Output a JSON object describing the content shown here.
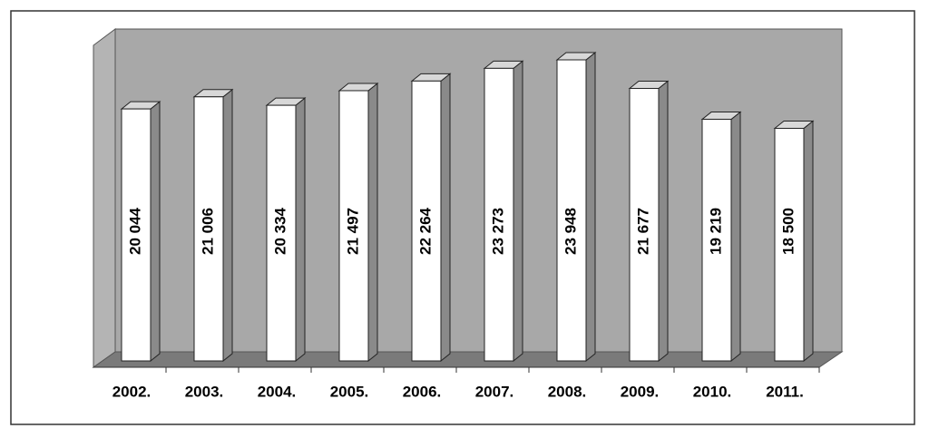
{
  "chart_data": {
    "type": "bar3d",
    "categories": [
      "2002.",
      "2003.",
      "2004.",
      "2005.",
      "2006.",
      "2007.",
      "2008.",
      "2009.",
      "2010.",
      "2011."
    ],
    "values": [
      20044,
      21006,
      20334,
      21497,
      22264,
      23273,
      23948,
      21677,
      19219,
      18500
    ],
    "value_labels": [
      "20 044",
      "21 006",
      "20 334",
      "21 497",
      "22 264",
      "23 273",
      "23 948",
      "21 677",
      "19 219",
      "18 500"
    ],
    "color": "#ffffff"
  }
}
